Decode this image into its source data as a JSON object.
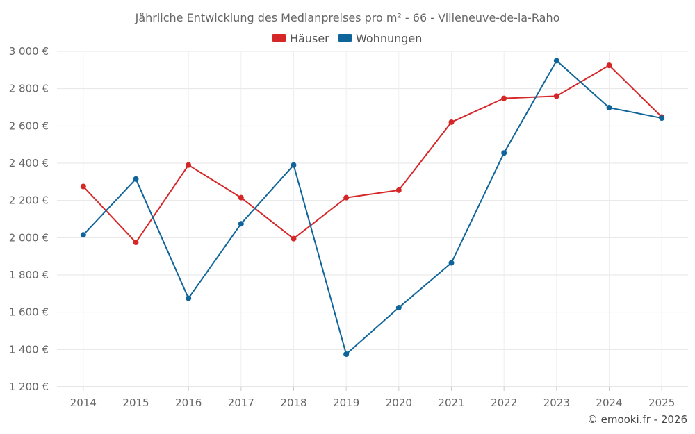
{
  "chart_data": {
    "type": "line",
    "title": "Jährliche Entwicklung des Medianpreises pro m² - 66 - Villeneuve-de-la-Raho",
    "xlabel": "",
    "ylabel": "",
    "x": [
      "2014",
      "2015",
      "2016",
      "2017",
      "2018",
      "2019",
      "2020",
      "2021",
      "2022",
      "2023",
      "2024",
      "2025"
    ],
    "ylim": [
      1200,
      3000
    ],
    "yticks": [
      1200,
      1400,
      1600,
      1800,
      2000,
      2200,
      2400,
      2600,
      2800,
      3000
    ],
    "ytick_labels": [
      "1 200 €",
      "1 400 €",
      "1 600 €",
      "1 800 €",
      "2 000 €",
      "2 200 €",
      "2 400 €",
      "2 600 €",
      "2 800 €",
      "3 000 €"
    ],
    "grid": true,
    "legend_position": "top-center",
    "series": [
      {
        "name": "Häuser",
        "color": "#d62728",
        "values": [
          2275,
          1975,
          2390,
          2215,
          1995,
          2215,
          2255,
          2620,
          2748,
          2760,
          2925,
          2648
        ]
      },
      {
        "name": "Wohnungen",
        "color": "#0f6599",
        "values": [
          2015,
          2315,
          1675,
          2075,
          2390,
          1375,
          1625,
          1865,
          2455,
          2950,
          2698,
          2642
        ]
      }
    ]
  },
  "footer": {
    "copyright": "© emooki.fr - 2026"
  }
}
